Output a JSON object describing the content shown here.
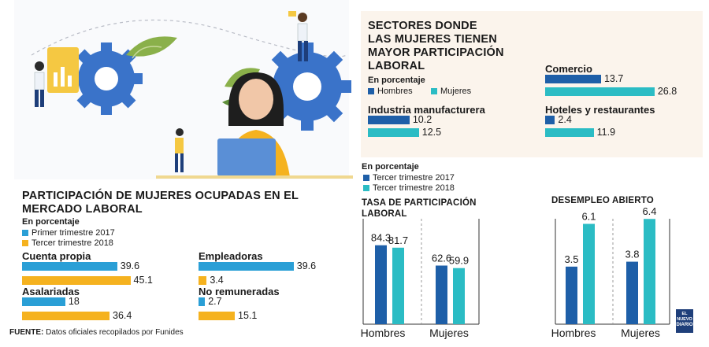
{
  "colors": {
    "dark_blue": "#1e5fa8",
    "light_blue": "#2a9fd6",
    "teal": "#2bbcc4",
    "orange": "#f5b21f",
    "panel": "#fbf4ec"
  },
  "left_chart": {
    "title_line1": "PARTICIPACIÓN DE MUJERES OCUPADAS EN EL",
    "title_line2": "MERCADO LABORAL",
    "subtitle": "En porcentaje",
    "legend": [
      "Primer trimestre 2017",
      "Tercer trimestre 2018"
    ]
  },
  "right_top": {
    "title_lines": [
      "SECTORES DONDE",
      "LAS MUJERES TIENEN",
      "MAYOR PARTICIPACIÓN",
      "LABORAL"
    ],
    "subtitle": "En porcentaje",
    "legend": [
      "Hombres",
      "Mujeres"
    ]
  },
  "bottom_mid": {
    "subtitle": "En porcentaje",
    "legend": [
      "Tercer trimestre 2017",
      "Tercer trimestre 2018"
    ]
  },
  "source": {
    "label": "FUENTE:",
    "text": "Datos oficiales recopilados por Funides"
  },
  "logo": {
    "line1": "EL NUEVO",
    "line2": "DIARIO"
  },
  "chart_data": [
    {
      "type": "bar",
      "orientation": "horizontal",
      "categories": [
        "Cuenta propia",
        "Asalariadas",
        "Empleadoras",
        "No remuneradas"
      ],
      "series": [
        {
          "name": "Primer trimestre 2017",
          "values": [
            39.6,
            18,
            39.6,
            2.7
          ]
        },
        {
          "name": "Tercer trimestre 2018",
          "values": [
            45.1,
            36.4,
            3.4,
            15.1
          ]
        }
      ],
      "value_labels": [
        [
          "39.6",
          "18",
          "39.6",
          "2.7"
        ],
        [
          "45.1",
          "36.4",
          "3.4",
          "15.1"
        ]
      ]
    },
    {
      "type": "bar",
      "orientation": "horizontal",
      "categories": [
        "Comercio",
        "Industria manufacturera",
        "Hoteles y restaurantes"
      ],
      "series": [
        {
          "name": "Hombres",
          "values": [
            13.7,
            10.2,
            2.4
          ]
        },
        {
          "name": "Mujeres",
          "values": [
            26.8,
            12.5,
            11.9
          ]
        }
      ],
      "value_labels": [
        [
          "13.7",
          "10.2",
          "2.4"
        ],
        [
          "26.8",
          "12.5",
          "11.9"
        ]
      ]
    },
    {
      "type": "bar",
      "title_lines": [
        "TASA DE PARTICIPACIÓN",
        "LABORAL"
      ],
      "categories": [
        "Hombres",
        "Mujeres"
      ],
      "series": [
        {
          "name": "Tercer trimestre 2017",
          "values": [
            84.3,
            62.6
          ]
        },
        {
          "name": "Tercer trimestre 2018",
          "values": [
            81.7,
            59.9
          ]
        }
      ],
      "value_labels": [
        [
          "84.3",
          "62.6"
        ],
        [
          "81.7",
          "59.9"
        ]
      ]
    },
    {
      "type": "bar",
      "title": "DESEMPLEO ABIERTO",
      "categories": [
        "Hombres",
        "Mujeres"
      ],
      "series": [
        {
          "name": "Tercer trimestre 2017",
          "values": [
            3.5,
            3.8
          ]
        },
        {
          "name": "Tercer trimestre 2018",
          "values": [
            6.1,
            6.4
          ]
        }
      ],
      "value_labels": [
        [
          "3.5",
          "3.8"
        ],
        [
          "6.1",
          "6.4"
        ]
      ]
    }
  ]
}
